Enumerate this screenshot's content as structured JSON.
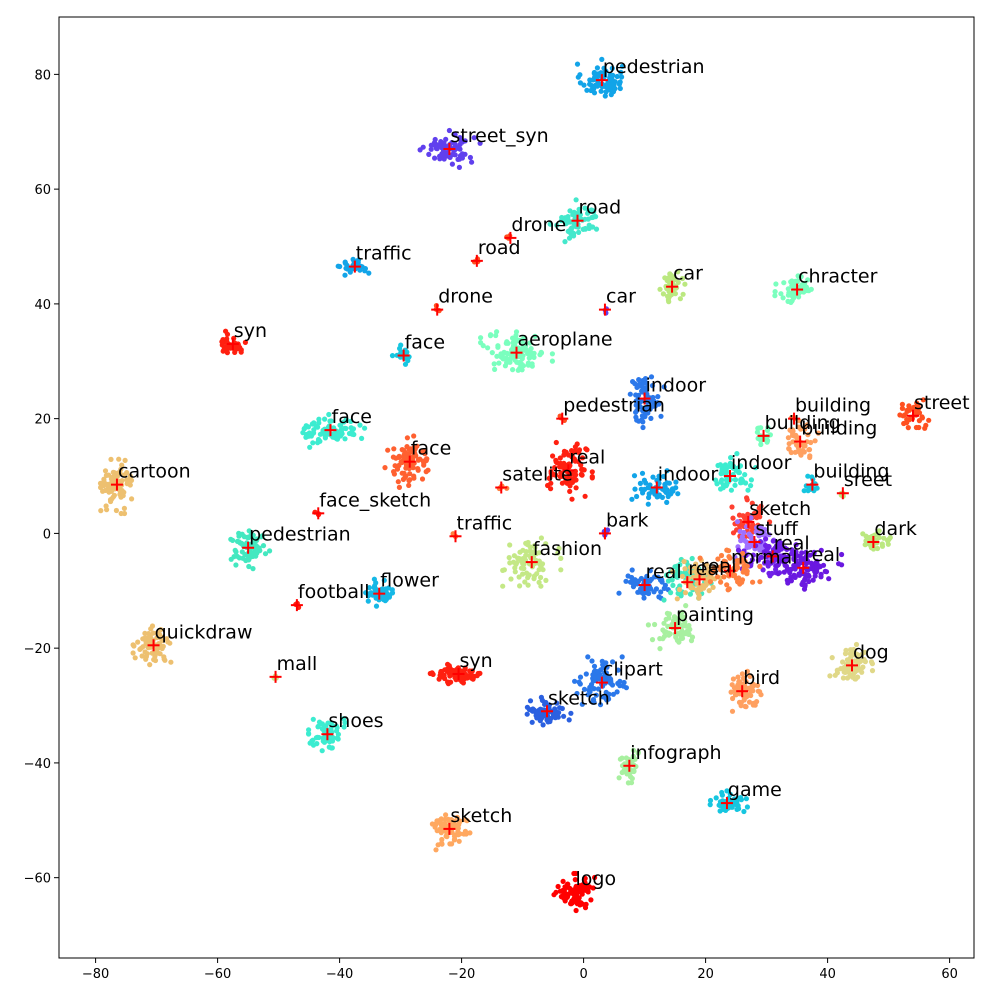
{
  "chart_data": {
    "type": "scatter",
    "title": "",
    "xlabel": "",
    "ylabel": "",
    "xlim": [
      -86,
      64
    ],
    "ylim": [
      -74,
      90
    ],
    "grid": false,
    "legend": "none",
    "x_ticks": [
      -80,
      -60,
      -40,
      -20,
      0,
      20,
      40,
      60
    ],
    "y_ticks": [
      -60,
      -40,
      -20,
      0,
      20,
      40,
      60,
      80
    ],
    "x_tick_labels": [
      "−80",
      "−60",
      "−40",
      "−20",
      "0",
      "20",
      "40",
      "60"
    ],
    "y_tick_labels": [
      "−60",
      "−40",
      "−20",
      "0",
      "20",
      "40",
      "60",
      "80"
    ],
    "center_marker_color": "#ff0000",
    "clusters": [
      {
        "label": "pedestrian",
        "center": [
          3,
          79
        ],
        "spread": [
          3.0,
          2.6
        ],
        "count": 80,
        "color": "#12a4e8"
      },
      {
        "label": "street_syn",
        "center": [
          -22,
          67
        ],
        "spread": [
          3.6,
          2.3
        ],
        "count": 75,
        "color": "#6040ee"
      },
      {
        "label": "road",
        "center": [
          -1,
          54.5
        ],
        "spread": [
          3.2,
          2.6
        ],
        "count": 70,
        "color": "#44e8cc"
      },
      {
        "label": "drone",
        "center": [
          -12,
          51.5
        ],
        "spread": [
          0.5,
          0.5
        ],
        "count": 3,
        "color": "#ff5020"
      },
      {
        "label": "road",
        "center": [
          -17.5,
          47.5
        ],
        "spread": [
          0.5,
          0.5
        ],
        "count": 3,
        "color": "#ff5020"
      },
      {
        "label": "traffic",
        "center": [
          -37.5,
          46.5
        ],
        "spread": [
          2.0,
          1.2
        ],
        "count": 30,
        "color": "#12a4e8"
      },
      {
        "label": "car",
        "center": [
          14.5,
          43
        ],
        "spread": [
          1.5,
          2.4
        ],
        "count": 40,
        "color": "#bbe880"
      },
      {
        "label": "chracter",
        "center": [
          35,
          42.5
        ],
        "spread": [
          2.6,
          2.3
        ],
        "count": 60,
        "color": "#7affbe"
      },
      {
        "label": "drone",
        "center": [
          -24,
          39
        ],
        "spread": [
          0.5,
          0.5
        ],
        "count": 3,
        "color": "#ff5020"
      },
      {
        "label": "car",
        "center": [
          3.5,
          39
        ],
        "spread": [
          0.5,
          0.5
        ],
        "count": 3,
        "color": "#6040ee"
      },
      {
        "label": "syn",
        "center": [
          -57.5,
          33
        ],
        "spread": [
          2.0,
          1.6
        ],
        "count": 40,
        "color": "#ff2010"
      },
      {
        "label": "aeroplane",
        "center": [
          -11,
          31.5
        ],
        "spread": [
          4.2,
          3.0
        ],
        "count": 110,
        "color": "#7affbe"
      },
      {
        "label": "face",
        "center": [
          -29.5,
          31
        ],
        "spread": [
          1.3,
          1.3
        ],
        "count": 22,
        "color": "#16c6e0"
      },
      {
        "label": "indoor",
        "center": [
          10,
          23.5
        ],
        "spread": [
          2.3,
          3.6
        ],
        "count": 75,
        "color": "#2b78ea"
      },
      {
        "label": "pedestrian",
        "center": [
          -3.5,
          20
        ],
        "spread": [
          0.5,
          0.5
        ],
        "count": 3,
        "color": "#ff5020"
      },
      {
        "label": "street",
        "center": [
          54,
          20.5
        ],
        "spread": [
          2.2,
          2.0
        ],
        "count": 40,
        "color": "#ff5020"
      },
      {
        "label": "building",
        "center": [
          34.5,
          20
        ],
        "spread": [
          0.5,
          0.5
        ],
        "count": 3,
        "color": "#ffa060"
      },
      {
        "label": "face",
        "center": [
          -41.5,
          18
        ],
        "spread": [
          4.0,
          2.2
        ],
        "count": 80,
        "color": "#3cecd0"
      },
      {
        "label": "building",
        "center": [
          29.5,
          17
        ],
        "spread": [
          1.5,
          1.5
        ],
        "count": 20,
        "color": "#7affbe"
      },
      {
        "label": "building",
        "center": [
          35.5,
          16
        ],
        "spread": [
          2.4,
          2.6
        ],
        "count": 50,
        "color": "#ffa060"
      },
      {
        "label": "face",
        "center": [
          -28.5,
          12.5
        ],
        "spread": [
          3.2,
          3.2
        ],
        "count": 90,
        "color": "#ff6030"
      },
      {
        "label": "real",
        "center": [
          -2.5,
          11
        ],
        "spread": [
          2.8,
          3.6
        ],
        "count": 90,
        "color": "#ff2010"
      },
      {
        "label": "indoor",
        "center": [
          24,
          10
        ],
        "spread": [
          3.0,
          3.0
        ],
        "count": 60,
        "color": "#3cecd0"
      },
      {
        "label": "satelite",
        "center": [
          -13.5,
          8
        ],
        "spread": [
          0.8,
          0.5
        ],
        "count": 6,
        "color": "#ff8040"
      },
      {
        "label": "cartoon",
        "center": [
          -76.5,
          8.5
        ],
        "spread": [
          2.2,
          3.6
        ],
        "count": 80,
        "color": "#edc070"
      },
      {
        "label": "indoor",
        "center": [
          12,
          8
        ],
        "spread": [
          3.0,
          2.2
        ],
        "count": 60,
        "color": "#12a4e8"
      },
      {
        "label": "building",
        "center": [
          37.5,
          8.5
        ],
        "spread": [
          1.2,
          1.2
        ],
        "count": 15,
        "color": "#16c6e0"
      },
      {
        "label": "sreet",
        "center": [
          42.5,
          7
        ],
        "spread": [
          0.6,
          0.6
        ],
        "count": 4,
        "color": "#bbe880"
      },
      {
        "label": "face_sketch",
        "center": [
          -43.5,
          3.5
        ],
        "spread": [
          0.5,
          0.5
        ],
        "count": 3,
        "color": "#ff2010"
      },
      {
        "label": "sketch",
        "center": [
          27,
          2
        ],
        "spread": [
          2.5,
          3.0
        ],
        "count": 50,
        "color": "#ff4030"
      },
      {
        "label": "bark",
        "center": [
          3.5,
          0
        ],
        "spread": [
          0.6,
          0.8
        ],
        "count": 5,
        "color": "#6040ee"
      },
      {
        "label": "traffic",
        "center": [
          -21,
          -0.5
        ],
        "spread": [
          0.5,
          0.5
        ],
        "count": 3,
        "color": "#ff8040"
      },
      {
        "label": "stuff",
        "center": [
          28,
          -1.5
        ],
        "spread": [
          3.0,
          3.0
        ],
        "count": 60,
        "color": "#9f70ff"
      },
      {
        "label": "dark",
        "center": [
          47.5,
          -1.5
        ],
        "spread": [
          2.6,
          1.4
        ],
        "count": 40,
        "color": "#bbe880"
      },
      {
        "label": "pedestrian",
        "center": [
          -55,
          -2.5
        ],
        "spread": [
          2.6,
          2.6
        ],
        "count": 75,
        "color": "#44e8c0"
      },
      {
        "label": "fashion",
        "center": [
          -8.5,
          -5
        ],
        "spread": [
          3.4,
          3.0
        ],
        "count": 80,
        "color": "#c4e886"
      },
      {
        "label": "real",
        "center": [
          31,
          -4
        ],
        "spread": [
          4.0,
          3.0
        ],
        "count": 80,
        "color": "#7020e8"
      },
      {
        "label": "real",
        "center": [
          36,
          -6
        ],
        "spread": [
          4.5,
          3.0
        ],
        "count": 90,
        "color": "#6a18e0"
      },
      {
        "label": "flower",
        "center": [
          -33.5,
          -10.5
        ],
        "spread": [
          2.4,
          1.8
        ],
        "count": 50,
        "color": "#16b8e6"
      },
      {
        "label": "real",
        "center": [
          10,
          -9
        ],
        "spread": [
          3.0,
          2.6
        ],
        "count": 60,
        "color": "#2b78ea"
      },
      {
        "label": "real",
        "center": [
          17,
          -8.5
        ],
        "spread": [
          3.5,
          3.5
        ],
        "count": 60,
        "color": "#44e8c0"
      },
      {
        "label": "real",
        "center": [
          19,
          -8
        ],
        "spread": [
          3.5,
          3.5
        ],
        "count": 60,
        "color": "#edc070"
      },
      {
        "label": "normal",
        "center": [
          24,
          -6.5
        ],
        "spread": [
          3.5,
          3.0
        ],
        "count": 60,
        "color": "#ff8040"
      },
      {
        "label": "football",
        "center": [
          -47,
          -12.5
        ],
        "spread": [
          0.5,
          0.5
        ],
        "count": 3,
        "color": "#ff2010"
      },
      {
        "label": "painting",
        "center": [
          15,
          -16.5
        ],
        "spread": [
          3.2,
          2.8
        ],
        "count": 70,
        "color": "#a8f0a0"
      },
      {
        "label": "quickdraw",
        "center": [
          -70.5,
          -19.5
        ],
        "spread": [
          2.4,
          2.4
        ],
        "count": 75,
        "color": "#edc070"
      },
      {
        "label": "dog",
        "center": [
          44,
          -23
        ],
        "spread": [
          2.6,
          2.6
        ],
        "count": 75,
        "color": "#e0d888"
      },
      {
        "label": "syn",
        "center": [
          -20.5,
          -24.5
        ],
        "spread": [
          3.4,
          1.4
        ],
        "count": 80,
        "color": "#ff2010"
      },
      {
        "label": "mall",
        "center": [
          -50.5,
          -25
        ],
        "spread": [
          0.5,
          0.5
        ],
        "count": 3,
        "color": "#c4e886"
      },
      {
        "label": "clipart",
        "center": [
          3,
          -26
        ],
        "spread": [
          3.2,
          3.2
        ],
        "count": 80,
        "color": "#2b78ea"
      },
      {
        "label": "bird",
        "center": [
          26,
          -27.5
        ],
        "spread": [
          2.2,
          2.6
        ],
        "count": 70,
        "color": "#ffa060"
      },
      {
        "label": "sketch",
        "center": [
          -6,
          -31
        ],
        "spread": [
          2.8,
          1.8
        ],
        "count": 70,
        "color": "#2b60e0"
      },
      {
        "label": "shoes",
        "center": [
          -42,
          -35
        ],
        "spread": [
          2.2,
          2.4
        ],
        "count": 65,
        "color": "#3cecd0"
      },
      {
        "label": "infograph",
        "center": [
          7.5,
          -40.5
        ],
        "spread": [
          1.4,
          2.4
        ],
        "count": 45,
        "color": "#a8f0a0"
      },
      {
        "label": "game",
        "center": [
          23.5,
          -47
        ],
        "spread": [
          2.4,
          1.8
        ],
        "count": 55,
        "color": "#16c6e0"
      },
      {
        "label": "sketch",
        "center": [
          -22,
          -51.5
        ],
        "spread": [
          2.4,
          2.6
        ],
        "count": 75,
        "color": "#ffa860"
      },
      {
        "label": "logo",
        "center": [
          -1.5,
          -62.5
        ],
        "spread": [
          2.6,
          2.3
        ],
        "count": 90,
        "color": "#ff0000"
      }
    ]
  }
}
